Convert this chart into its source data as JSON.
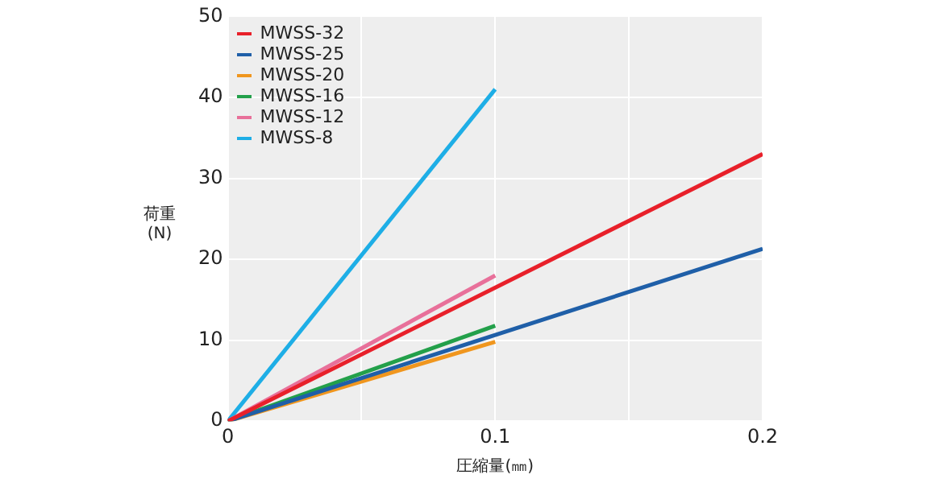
{
  "chart_data": {
    "type": "line",
    "xlabel": "圧縮量(㎜)",
    "ylabel": "荷重(N)",
    "xlim": [
      0,
      0.2
    ],
    "ylim": [
      0,
      50
    ],
    "xticks": [
      0,
      {
        "value": 0.05,
        "label": null
      },
      0.1,
      {
        "value": 0.15,
        "label": null
      },
      0.2
    ],
    "yticks": [
      0,
      10,
      20,
      30,
      40,
      50
    ],
    "grid": true,
    "legend": "top left",
    "marker": "none",
    "line_style": "solid",
    "series": [
      {
        "name": "MWSS-32",
        "color": "#e8202a",
        "x": [
          0,
          0.2
        ],
        "values": [
          0,
          33
        ]
      },
      {
        "name": "MWSS-25",
        "color": "#1f5fa8",
        "x": [
          0,
          0.2
        ],
        "values": [
          0,
          21.3
        ]
      },
      {
        "name": "MWSS-20",
        "color": "#f0961e",
        "x": [
          0,
          0.1
        ],
        "values": [
          0,
          9.8
        ]
      },
      {
        "name": "MWSS-16",
        "color": "#23a04a",
        "x": [
          0,
          0.1
        ],
        "values": [
          0,
          11.8
        ]
      },
      {
        "name": "MWSS-12",
        "color": "#e8709a",
        "x": [
          0,
          0.1
        ],
        "values": [
          0,
          18
        ]
      },
      {
        "name": "MWSS-8",
        "color": "#1eaee6",
        "x": [
          0,
          0.1
        ],
        "values": [
          0,
          41
        ]
      }
    ]
  }
}
